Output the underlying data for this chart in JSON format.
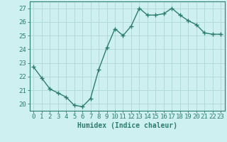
{
  "xlabel": "Humidex (Indice chaleur)",
  "ylabel": "",
  "x": [
    0,
    1,
    2,
    3,
    4,
    5,
    6,
    7,
    8,
    9,
    10,
    11,
    12,
    13,
    14,
    15,
    16,
    17,
    18,
    19,
    20,
    21,
    22,
    23
  ],
  "y": [
    22.7,
    21.9,
    21.1,
    20.8,
    20.5,
    19.9,
    19.8,
    20.4,
    22.5,
    24.1,
    25.5,
    25.0,
    25.7,
    27.0,
    26.5,
    26.5,
    26.6,
    27.0,
    26.5,
    26.1,
    25.8,
    25.2,
    25.1,
    25.1
  ],
  "line_color": "#2d7d6e",
  "marker": "P",
  "marker_size": 2.5,
  "bg_color": "#cef0f0",
  "grid_color": "#b0d8d8",
  "tick_color": "#2d7d6e",
  "ylim": [
    19.5,
    27.5
  ],
  "yticks": [
    20,
    21,
    22,
    23,
    24,
    25,
    26,
    27
  ],
  "xlim": [
    -0.5,
    23.5
  ],
  "xticks": [
    0,
    1,
    2,
    3,
    4,
    5,
    6,
    7,
    8,
    9,
    10,
    11,
    12,
    13,
    14,
    15,
    16,
    17,
    18,
    19,
    20,
    21,
    22,
    23
  ],
  "xlabel_fontsize": 7,
  "tick_fontsize": 6.5,
  "line_width": 1.0
}
